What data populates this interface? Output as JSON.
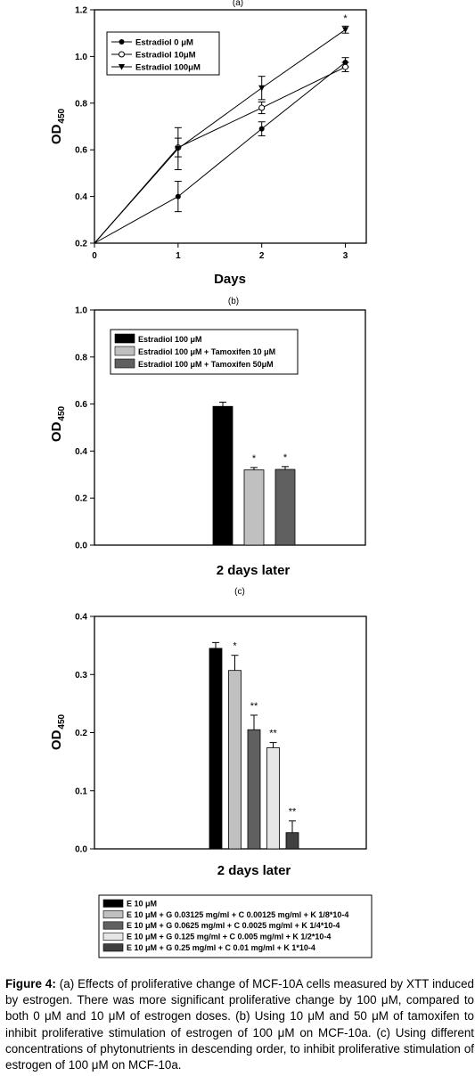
{
  "chart_data": [
    {
      "panel_label": "(a)",
      "type": "line",
      "xlabel": "Days",
      "ylabel_main": "OD",
      "ylabel_sub": "450",
      "x": [
        0,
        1,
        2,
        3
      ],
      "xlim": [
        0,
        3.25
      ],
      "ylim": [
        0.2,
        1.2
      ],
      "xticks": [
        "0",
        "1",
        "2",
        "3"
      ],
      "yticks": [
        "0.2",
        "0.4",
        "0.6",
        "0.8",
        "1.0",
        "1.2"
      ],
      "series": [
        {
          "name": "Estradiol 0 μM",
          "marker": "filled-circle",
          "values": [
            0.2,
            0.4,
            0.69,
            0.975
          ],
          "errors": [
            0,
            0.065,
            0.03,
            0.02
          ]
        },
        {
          "name": "Estradiol 10μM",
          "marker": "open-circle",
          "values": [
            0.2,
            0.61,
            0.78,
            0.955
          ],
          "errors": [
            0,
            0.04,
            0.025,
            0.02
          ]
        },
        {
          "name": "Estradiol 100μM",
          "marker": "filled-triangle-down",
          "values": [
            0.2,
            0.605,
            0.865,
            1.115
          ],
          "errors": [
            0,
            0.09,
            0.05,
            0.015
          ]
        }
      ],
      "annotations": [
        {
          "x": 3,
          "y": 1.165,
          "text": "*"
        }
      ],
      "legend": "top-left"
    },
    {
      "panel_label": "(b)",
      "type": "bar",
      "xlabel": "2 days later",
      "ylabel_main": "OD",
      "ylabel_sub": "450",
      "ylim": [
        0,
        1.0
      ],
      "yticks": [
        "0.0",
        "0.2",
        "0.4",
        "0.6",
        "0.8",
        "1.0"
      ],
      "series": [
        {
          "name": "Estradiol 100 μM",
          "color": "#000000",
          "value": 0.59,
          "error": 0.018,
          "mark": ""
        },
        {
          "name": "Estradiol 100 μM + Tamoxifen 10 μM",
          "color": "#c0c0c0",
          "value": 0.32,
          "error": 0.01,
          "mark": "*"
        },
        {
          "name": "Estradiol 100 μM + Tamoxifen 50μM",
          "color": "#606060",
          "value": 0.322,
          "error": 0.012,
          "mark": "*"
        }
      ],
      "legend": "top-left"
    },
    {
      "panel_label": "(c)",
      "type": "bar",
      "xlabel": "2 days later",
      "ylabel_main": "OD",
      "ylabel_sub": "450",
      "ylim": [
        0,
        0.4
      ],
      "yticks": [
        "0.0",
        "0.1",
        "0.2",
        "0.3",
        "0.4"
      ],
      "series": [
        {
          "name": "E 10 μM",
          "color": "#000000",
          "value": 0.345,
          "error": 0.01,
          "mark": ""
        },
        {
          "name": "E 10 μM + G 0.03125 mg/ml + C 0.00125 mg/ml + K 1/8*10-4",
          "color": "#c0c0c0",
          "value": 0.307,
          "error": 0.026,
          "mark": "*"
        },
        {
          "name": "E 10 μM + G 0.0625 mg/ml + C 0.0025 mg/ml + K 1/4*10-4",
          "color": "#606060",
          "value": 0.205,
          "error": 0.025,
          "mark": "**"
        },
        {
          "name": "E 10 μM + G 0.125 mg/ml + C 0.005 mg/ml + K 1/2*10-4",
          "color": "#e6e6e6",
          "value": 0.174,
          "error": 0.009,
          "mark": "**"
        },
        {
          "name": "E 10 μM + G 0.25 mg/ml + C 0.01 mg/ml + K 1*10-4",
          "color": "#404040",
          "value": 0.028,
          "error": 0.02,
          "mark": "**"
        }
      ],
      "legend": "bottom"
    }
  ],
  "caption": {
    "label": "Figure 4:",
    "text": "(a) Effects of proliferative change of MCF-10A cells measured by XTT induced by estrogen. There was more significant proliferative change by 100 μM, compared to both 0 μM and 10 μM of estrogen doses. (b) Using 10 μM and 50 μM of tamoxifen to inhibit proliferative stimulation of estrogen of 100 μM on MCF-10a. (c) Using different concentrations of phytonutrients in descending order, to inhibit proliferative stimulation of estrogen of 100 μM on MCF-10a."
  }
}
